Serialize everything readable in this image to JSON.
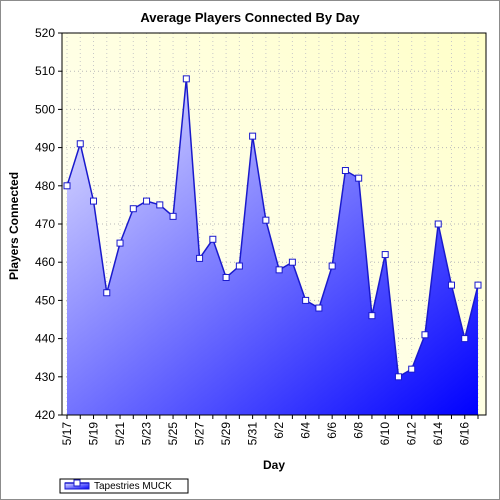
{
  "chart_data": {
    "type": "area",
    "title": "Average Players Connected By Day",
    "xlabel": "Day",
    "ylabel": "Players Connected",
    "ylim": [
      420,
      520
    ],
    "yticks": [
      420,
      430,
      440,
      450,
      460,
      470,
      480,
      490,
      500,
      510,
      520
    ],
    "grid": true,
    "legend_placement": "bottom-left",
    "x": [
      "5/17",
      "5/18",
      "5/19",
      "5/20",
      "5/21",
      "5/22",
      "5/23",
      "5/24",
      "5/25",
      "5/26",
      "5/27",
      "5/28",
      "5/29",
      "5/30",
      "5/31",
      "6/1",
      "6/2",
      "6/3",
      "6/4",
      "6/5",
      "6/6",
      "6/7",
      "6/8",
      "6/9",
      "6/10",
      "6/11",
      "6/12",
      "6/13",
      "6/14",
      "6/15",
      "6/16",
      "6/17"
    ],
    "xtick_labels": [
      "5/17",
      "5/19",
      "5/21",
      "5/23",
      "5/25",
      "5/27",
      "5/29",
      "5/31",
      "6/2",
      "6/4",
      "6/6",
      "6/8",
      "6/10",
      "6/12",
      "6/14",
      "6/16"
    ],
    "series": [
      {
        "name": "Tapestries MUCK",
        "color": "#0000ff",
        "line_color": "#1a1acc",
        "values": [
          480,
          491,
          476,
          452,
          465,
          474,
          476,
          475,
          472,
          508,
          461,
          466,
          456,
          459,
          493,
          471,
          458,
          460,
          450,
          448,
          459,
          484,
          482,
          446,
          462,
          430,
          432,
          441,
          470,
          454,
          440,
          454
        ]
      }
    ],
    "colors": {
      "plot_bg_top_right": "#ffffc8",
      "plot_bg_bottom_left": "#ffffff",
      "fill_light": "#e6e6ff",
      "fill_dark": "#0000ff"
    }
  }
}
